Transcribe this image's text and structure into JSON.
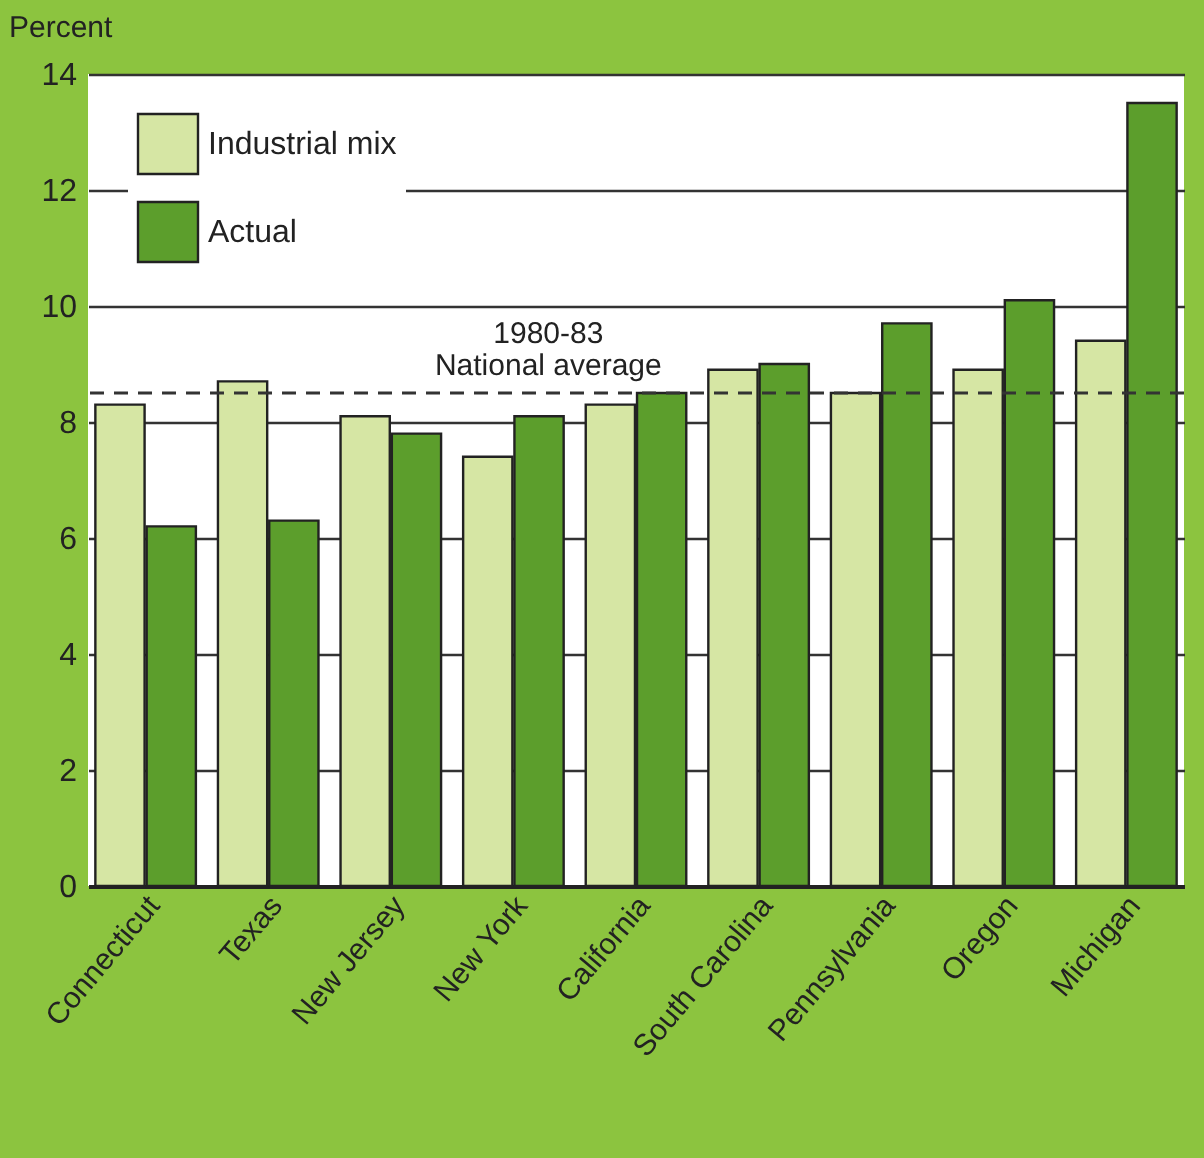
{
  "chart_data": {
    "type": "bar",
    "ylabel": "Percent",
    "categories": [
      "Connecticut",
      "Texas",
      "New Jersey",
      "New York",
      "California",
      "South Carolina",
      "Pennsylvania",
      "Oregon",
      "Michigan"
    ],
    "series": [
      {
        "name": "Industrial mix",
        "color": "#d6e6a4",
        "values": [
          8.3,
          8.7,
          8.1,
          7.4,
          8.3,
          8.9,
          8.5,
          8.9,
          9.4
        ]
      },
      {
        "name": "Actual",
        "color": "#5c9e2c",
        "values": [
          6.2,
          6.3,
          7.8,
          8.1,
          8.5,
          9.0,
          9.7,
          10.1,
          13.5
        ]
      }
    ],
    "ylim": [
      0,
      14
    ],
    "yticks": [
      0,
      2,
      4,
      6,
      8,
      10,
      12,
      14
    ],
    "grid": "y",
    "legend": "top left",
    "ref_lines": [
      {
        "axis": "y",
        "value": 8.5,
        "label": "1980-83\nNational average",
        "line_style": "dashed",
        "color": "#333333"
      }
    ]
  }
}
